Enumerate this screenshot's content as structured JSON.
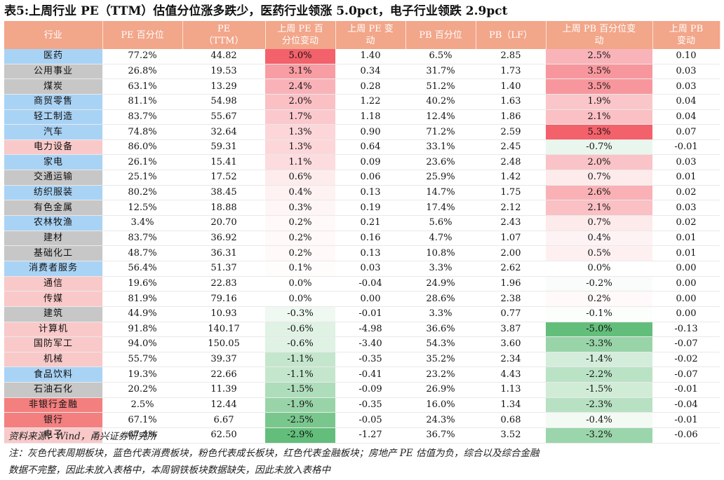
{
  "title": "表5:上周行业 PE（TTM）估值分位涨多跌少，医药行业领涨 5.0pct，电子行业领跌 2.9pct",
  "headers": [
    "行业",
    "PE 百分位",
    "PE（TTM）",
    "上周 PE 百分位变动",
    "上周 PE 变动",
    "PB 百分位",
    "PB（LF）",
    "上周 PB 百分位变动",
    "上周 PB 变动"
  ],
  "header_lines": [
    [
      "行业"
    ],
    [
      "PE 百分位"
    ],
    [
      "PE",
      "（TTM）"
    ],
    [
      "上周 PE 百",
      "分位变动"
    ],
    [
      "上周 PE 变",
      "动"
    ],
    [
      "PB 百分位"
    ],
    [
      "PB（LF）"
    ],
    [
      "上周 PB 百分位变",
      "动"
    ],
    [
      "上周 PB",
      "变动"
    ]
  ],
  "category_colors": {
    "gray": "#c7c7c7",
    "blue": "#a9d3f5",
    "pink": "#f9c9c9",
    "red": "#f47f7f"
  },
  "rows": [
    {
      "industry": "医药",
      "cat": "blue",
      "pe_pct": "77.2%",
      "pe": "44.82",
      "pe_pct_chg": "5.0%",
      "pe_chg": "1.40",
      "pb_pct": "6.5%",
      "pb": "2.85",
      "pb_pct_chg": "2.5%",
      "pb_chg": "0.10"
    },
    {
      "industry": "公用事业",
      "cat": "gray",
      "pe_pct": "26.8%",
      "pe": "19.53",
      "pe_pct_chg": "3.1%",
      "pe_chg": "0.34",
      "pb_pct": "31.7%",
      "pb": "1.73",
      "pb_pct_chg": "3.5%",
      "pb_chg": "0.03"
    },
    {
      "industry": "煤炭",
      "cat": "gray",
      "pe_pct": "63.1%",
      "pe": "13.29",
      "pe_pct_chg": "2.4%",
      "pe_chg": "0.28",
      "pb_pct": "51.2%",
      "pb": "1.40",
      "pb_pct_chg": "3.5%",
      "pb_chg": "0.03"
    },
    {
      "industry": "商贸零售",
      "cat": "blue",
      "pe_pct": "81.1%",
      "pe": "54.98",
      "pe_pct_chg": "2.0%",
      "pe_chg": "1.22",
      "pb_pct": "40.2%",
      "pb": "1.63",
      "pb_pct_chg": "1.9%",
      "pb_chg": "0.04"
    },
    {
      "industry": "轻工制造",
      "cat": "blue",
      "pe_pct": "83.7%",
      "pe": "55.67",
      "pe_pct_chg": "1.7%",
      "pe_chg": "1.18",
      "pb_pct": "12.4%",
      "pb": "1.86",
      "pb_pct_chg": "2.1%",
      "pb_chg": "0.04"
    },
    {
      "industry": "汽车",
      "cat": "blue",
      "pe_pct": "74.8%",
      "pe": "32.64",
      "pe_pct_chg": "1.3%",
      "pe_chg": "0.90",
      "pb_pct": "71.2%",
      "pb": "2.59",
      "pb_pct_chg": "5.3%",
      "pb_chg": "0.07"
    },
    {
      "industry": "电力设备",
      "cat": "pink",
      "pe_pct": "86.0%",
      "pe": "59.31",
      "pe_pct_chg": "1.3%",
      "pe_chg": "0.64",
      "pb_pct": "33.1%",
      "pb": "2.45",
      "pb_pct_chg": "-0.7%",
      "pb_chg": "-0.01"
    },
    {
      "industry": "家电",
      "cat": "blue",
      "pe_pct": "26.1%",
      "pe": "15.41",
      "pe_pct_chg": "1.1%",
      "pe_chg": "0.09",
      "pb_pct": "23.6%",
      "pb": "2.48",
      "pb_pct_chg": "2.0%",
      "pb_chg": "0.03"
    },
    {
      "industry": "交通运输",
      "cat": "gray",
      "pe_pct": "25.1%",
      "pe": "17.52",
      "pe_pct_chg": "0.6%",
      "pe_chg": "0.06",
      "pb_pct": "25.9%",
      "pb": "1.42",
      "pb_pct_chg": "0.7%",
      "pb_chg": "0.01"
    },
    {
      "industry": "纺织服装",
      "cat": "blue",
      "pe_pct": "80.2%",
      "pe": "38.45",
      "pe_pct_chg": "0.4%",
      "pe_chg": "0.13",
      "pb_pct": "14.7%",
      "pb": "1.75",
      "pb_pct_chg": "2.6%",
      "pb_chg": "0.02"
    },
    {
      "industry": "有色金属",
      "cat": "gray",
      "pe_pct": "12.5%",
      "pe": "18.88",
      "pe_pct_chg": "0.3%",
      "pe_chg": "0.19",
      "pb_pct": "17.4%",
      "pb": "2.12",
      "pb_pct_chg": "2.1%",
      "pb_chg": "0.03"
    },
    {
      "industry": "农林牧渔",
      "cat": "blue",
      "pe_pct": "3.4%",
      "pe": "20.70",
      "pe_pct_chg": "0.2%",
      "pe_chg": "0.21",
      "pb_pct": "5.6%",
      "pb": "2.43",
      "pb_pct_chg": "0.7%",
      "pb_chg": "0.02"
    },
    {
      "industry": "建材",
      "cat": "gray",
      "pe_pct": "83.7%",
      "pe": "36.92",
      "pe_pct_chg": "0.2%",
      "pe_chg": "0.16",
      "pb_pct": "4.7%",
      "pb": "1.07",
      "pb_pct_chg": "0.4%",
      "pb_chg": "0.01"
    },
    {
      "industry": "基础化工",
      "cat": "gray",
      "pe_pct": "48.7%",
      "pe": "36.31",
      "pe_pct_chg": "0.2%",
      "pe_chg": "0.13",
      "pb_pct": "10.8%",
      "pb": "2.00",
      "pb_pct_chg": "0.5%",
      "pb_chg": "0.01"
    },
    {
      "industry": "消费者服务",
      "cat": "blue",
      "pe_pct": "56.4%",
      "pe": "51.37",
      "pe_pct_chg": "0.1%",
      "pe_chg": "0.03",
      "pb_pct": "3.3%",
      "pb": "2.62",
      "pb_pct_chg": "0.0%",
      "pb_chg": "0.00"
    },
    {
      "industry": "通信",
      "cat": "pink",
      "pe_pct": "19.6%",
      "pe": "22.83",
      "pe_pct_chg": "0.0%",
      "pe_chg": "-0.04",
      "pb_pct": "24.9%",
      "pb": "1.96",
      "pb_pct_chg": "-0.2%",
      "pb_chg": "0.00"
    },
    {
      "industry": "传媒",
      "cat": "pink",
      "pe_pct": "81.9%",
      "pe": "79.16",
      "pe_pct_chg": "0.0%",
      "pe_chg": "0.00",
      "pb_pct": "28.6%",
      "pb": "2.38",
      "pb_pct_chg": "0.2%",
      "pb_chg": "0.00"
    },
    {
      "industry": "建筑",
      "cat": "gray",
      "pe_pct": "44.9%",
      "pe": "10.93",
      "pe_pct_chg": "-0.3%",
      "pe_chg": "-0.01",
      "pb_pct": "3.3%",
      "pb": "0.77",
      "pb_pct_chg": "-0.1%",
      "pb_chg": "0.00"
    },
    {
      "industry": "计算机",
      "cat": "pink",
      "pe_pct": "91.8%",
      "pe": "140.17",
      "pe_pct_chg": "-0.6%",
      "pe_chg": "-4.98",
      "pb_pct": "36.6%",
      "pb": "3.87",
      "pb_pct_chg": "-5.0%",
      "pb_chg": "-0.13"
    },
    {
      "industry": "国防军工",
      "cat": "pink",
      "pe_pct": "94.0%",
      "pe": "150.05",
      "pe_pct_chg": "-0.6%",
      "pe_chg": "-3.40",
      "pb_pct": "54.3%",
      "pb": "3.60",
      "pb_pct_chg": "-3.3%",
      "pb_chg": "-0.07"
    },
    {
      "industry": "机械",
      "cat": "pink",
      "pe_pct": "55.7%",
      "pe": "39.37",
      "pe_pct_chg": "-1.1%",
      "pe_chg": "-0.35",
      "pb_pct": "35.2%",
      "pb": "2.34",
      "pb_pct_chg": "-1.4%",
      "pb_chg": "-0.02"
    },
    {
      "industry": "食品饮料",
      "cat": "blue",
      "pe_pct": "19.3%",
      "pe": "22.66",
      "pe_pct_chg": "-1.1%",
      "pe_chg": "-0.41",
      "pb_pct": "23.2%",
      "pb": "4.43",
      "pb_pct_chg": "-2.2%",
      "pb_chg": "-0.07"
    },
    {
      "industry": "石油石化",
      "cat": "gray",
      "pe_pct": "20.2%",
      "pe": "11.39",
      "pe_pct_chg": "-1.5%",
      "pe_chg": "-0.09",
      "pb_pct": "26.9%",
      "pb": "1.13",
      "pb_pct_chg": "-1.5%",
      "pb_chg": "-0.01"
    },
    {
      "industry": "非银行金融",
      "cat": "red",
      "pe_pct": "2.5%",
      "pe": "12.44",
      "pe_pct_chg": "-1.9%",
      "pe_chg": "-0.35",
      "pb_pct": "16.0%",
      "pb": "1.34",
      "pb_pct_chg": "-2.3%",
      "pb_chg": "-0.04"
    },
    {
      "industry": "银行",
      "cat": "red",
      "pe_pct": "67.1%",
      "pe": "6.67",
      "pe_pct_chg": "-2.5%",
      "pe_chg": "-0.05",
      "pb_pct": "24.3%",
      "pb": "0.68",
      "pb_pct_chg": "-0.4%",
      "pb_chg": "-0.01"
    },
    {
      "industry": "电子",
      "cat": "pink",
      "pe_pct": "67.4%",
      "pe": "62.50",
      "pe_pct_chg": "-2.9%",
      "pe_chg": "-1.27",
      "pb_pct": "36.7%",
      "pb": "3.52",
      "pb_pct_chg": "-3.2%",
      "pb_chg": "-0.06"
    }
  ],
  "source": "资料来源：Wind，甬兴证券研究所",
  "note_line1": "注：灰色代表周期板块，蓝色代表消费板块，粉色代表成长板块，红色代表金融板块；房地产 PE 估值为负，综合以及综合金融",
  "note_line2": "数据不完整，因此未放入表格中，本周钢铁板块数据缺失，因此未放入表格中"
}
